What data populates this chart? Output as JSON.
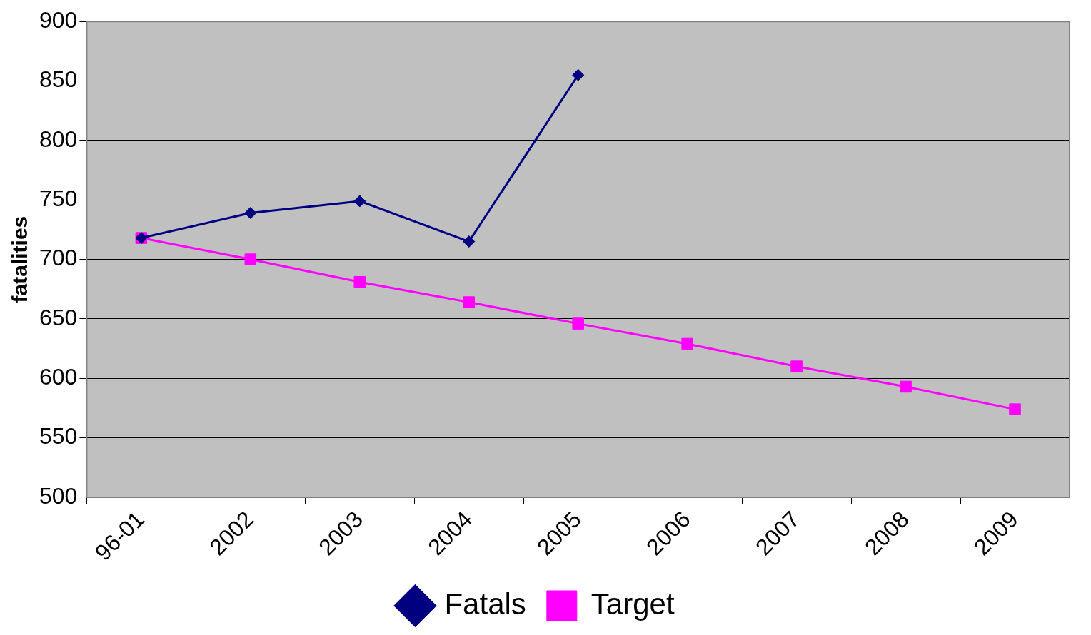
{
  "chart_data": {
    "type": "line",
    "ylabel": "fatalities",
    "categories": [
      "96-01",
      "2002",
      "2003",
      "2004",
      "2005",
      "2006",
      "2007",
      "2008",
      "2009"
    ],
    "series": [
      {
        "name": "Fatals",
        "color": "#000080",
        "marker": "diamond",
        "values": [
          718,
          739,
          749,
          715,
          855,
          null,
          null,
          null,
          null
        ]
      },
      {
        "name": "Target",
        "color": "#ff00ff",
        "marker": "square",
        "values": [
          718,
          700,
          681,
          664,
          646,
          629,
          610,
          593,
          574
        ]
      }
    ],
    "ylim": [
      500,
      900
    ],
    "yticks": [
      500,
      550,
      600,
      650,
      700,
      750,
      800,
      850,
      900
    ],
    "grid": "y",
    "legend": "bottom"
  }
}
